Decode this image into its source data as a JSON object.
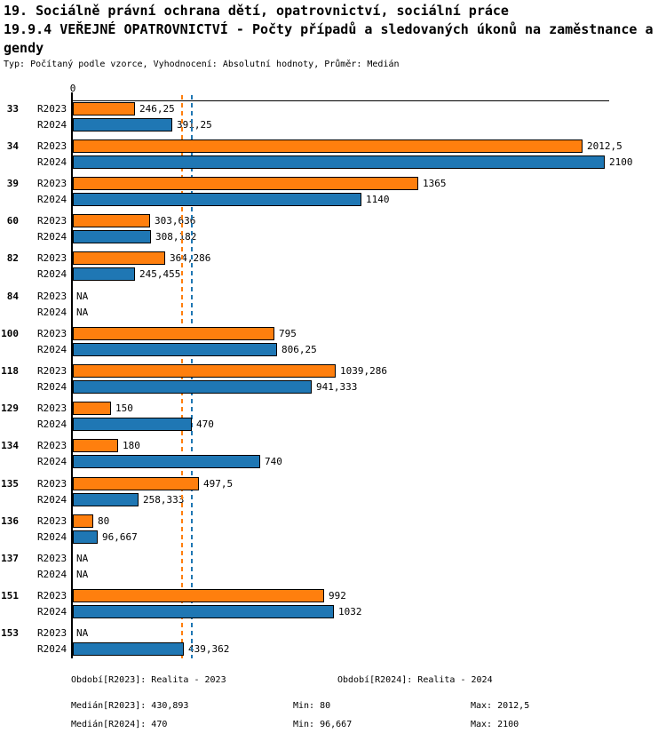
{
  "header": {
    "title_line1": "19. Sociálně právní ochrana dětí, opatrovnictví, sociální práce",
    "title_line2": "19.9.4 VEŘEJNÉ OPATROVNICTVÍ - Počty případů a sledovaných úkonů na zaměstnance a",
    "title_line3": "gendy",
    "subtitle": "Typ: Počítaný podle vzorce, Vyhodnocení: Absolutní hodnoty, Průměr: Medián"
  },
  "chart_data": {
    "type": "bar",
    "orientation": "horizontal",
    "x_axis": {
      "zero_label": "0",
      "min": 0,
      "visible_max": 2114,
      "grid": false
    },
    "series": [
      {
        "name": "R2023",
        "color": "#ff7f0e"
      },
      {
        "name": "R2024",
        "color": "#1f77b4"
      }
    ],
    "median_lines": [
      {
        "series": "R2023",
        "value": 430.893,
        "color": "#ff7f0e"
      },
      {
        "series": "R2024",
        "value": 470,
        "color": "#1f77b4"
      }
    ],
    "categories": [
      "33",
      "34",
      "39",
      "60",
      "82",
      "84",
      "100",
      "118",
      "129",
      "134",
      "135",
      "136",
      "137",
      "151",
      "153"
    ],
    "rows": [
      {
        "category": "33",
        "values": [
          246.25,
          391.25
        ],
        "labels": [
          "246,25",
          "391,25"
        ]
      },
      {
        "category": "34",
        "values": [
          2012.5,
          2100
        ],
        "labels": [
          "2012,5",
          "2100"
        ]
      },
      {
        "category": "39",
        "values": [
          1365,
          1140
        ],
        "labels": [
          "1365",
          "1140"
        ]
      },
      {
        "category": "60",
        "values": [
          303.636,
          308.182
        ],
        "labels": [
          "303,636",
          "308,182"
        ]
      },
      {
        "category": "82",
        "values": [
          364.286,
          245.455
        ],
        "labels": [
          "364,286",
          "245,455"
        ]
      },
      {
        "category": "84",
        "values": [
          null,
          null
        ],
        "labels": [
          "NA",
          "NA"
        ]
      },
      {
        "category": "100",
        "values": [
          795,
          806.25
        ],
        "labels": [
          "795",
          "806,25"
        ]
      },
      {
        "category": "118",
        "values": [
          1039.286,
          941.333
        ],
        "labels": [
          "1039,286",
          "941,333"
        ]
      },
      {
        "category": "129",
        "values": [
          150,
          470
        ],
        "labels": [
          "150",
          "470"
        ]
      },
      {
        "category": "134",
        "values": [
          180,
          740
        ],
        "labels": [
          "180",
          "740"
        ]
      },
      {
        "category": "135",
        "values": [
          497.5,
          258.333
        ],
        "labels": [
          "497,5",
          "258,333"
        ]
      },
      {
        "category": "136",
        "values": [
          80,
          96.667
        ],
        "labels": [
          "80",
          "96,667"
        ]
      },
      {
        "category": "137",
        "values": [
          null,
          null
        ],
        "labels": [
          "NA",
          "NA"
        ]
      },
      {
        "category": "151",
        "values": [
          992,
          1032
        ],
        "labels": [
          "992",
          "1032"
        ]
      },
      {
        "category": "153",
        "values": [
          null,
          439.362
        ],
        "labels": [
          "NA",
          "439,362"
        ]
      }
    ]
  },
  "footer": {
    "period_r2023": "Období[R2023]: Realita - 2023",
    "period_r2024": "Období[R2024]: Realita - 2024",
    "median_r2023": "Medián[R2023]: 430,893",
    "median_r2024": "Medián[R2024]: 470",
    "min_r2023": "Min: 80",
    "min_r2024": "Min: 96,667",
    "max_r2023": "Max: 2012,5",
    "max_r2024": "Max: 2100"
  }
}
